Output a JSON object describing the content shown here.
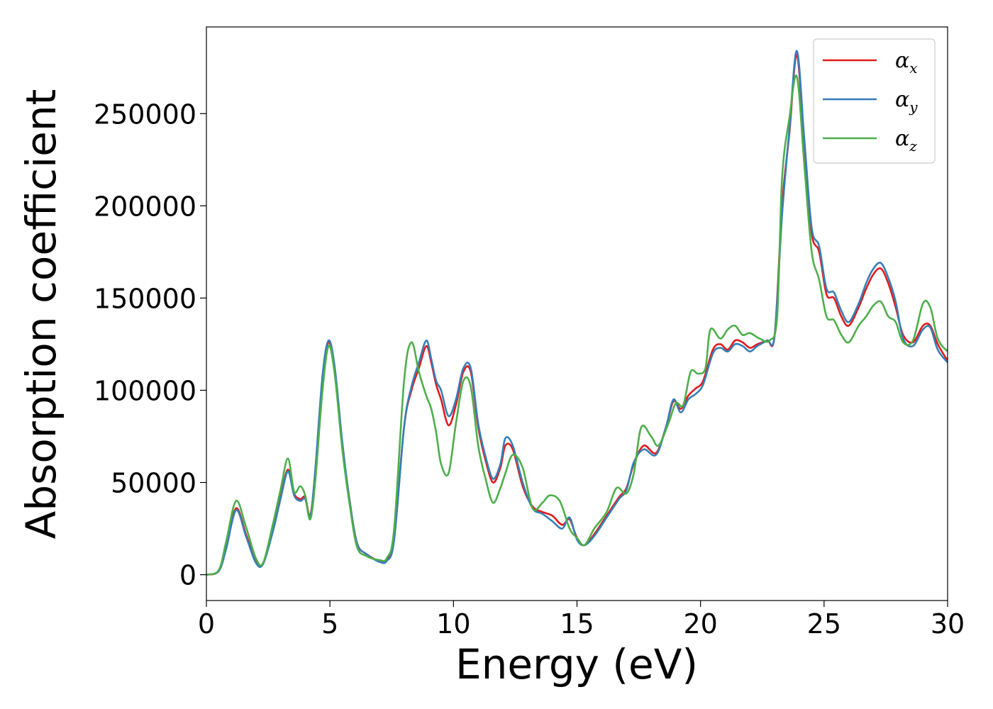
{
  "chart_data": {
    "type": "line",
    "xlabel": "Energy (eV)",
    "ylabel": "Absorption coefficient",
    "xlim": [
      0,
      30
    ],
    "ylim": [
      -14000,
      297000
    ],
    "xticks": [
      0,
      5,
      10,
      15,
      20,
      25,
      30
    ],
    "yticks": [
      0,
      50000,
      100000,
      150000,
      200000,
      250000
    ],
    "grid": false,
    "legend_position": "top-right",
    "series": [
      {
        "name": "α_x",
        "label_base": "α",
        "label_sub": "x",
        "color": "#e41a1c",
        "points": [
          [
            0,
            0
          ],
          [
            0.5,
            2000
          ],
          [
            0.8,
            15000
          ],
          [
            1.2,
            36000
          ],
          [
            1.6,
            22000
          ],
          [
            2.0,
            7000
          ],
          [
            2.3,
            6000
          ],
          [
            2.7,
            25000
          ],
          [
            3.0,
            42000
          ],
          [
            3.3,
            57000
          ],
          [
            3.55,
            44000
          ],
          [
            3.8,
            41000
          ],
          [
            4.0,
            42000
          ],
          [
            4.2,
            32000
          ],
          [
            4.4,
            55000
          ],
          [
            4.7,
            105000
          ],
          [
            4.95,
            126000
          ],
          [
            5.2,
            110000
          ],
          [
            5.5,
            70000
          ],
          [
            5.8,
            40000
          ],
          [
            6.1,
            17000
          ],
          [
            6.5,
            11000
          ],
          [
            7.0,
            7500
          ],
          [
            7.3,
            8000
          ],
          [
            7.6,
            20000
          ],
          [
            8.0,
            80000
          ],
          [
            8.3,
            100000
          ],
          [
            8.6,
            112000
          ],
          [
            8.9,
            124000
          ],
          [
            9.1,
            115000
          ],
          [
            9.3,
            103000
          ],
          [
            9.5,
            95000
          ],
          [
            9.8,
            81000
          ],
          [
            10.1,
            92000
          ],
          [
            10.4,
            110000
          ],
          [
            10.7,
            110000
          ],
          [
            11.0,
            80000
          ],
          [
            11.3,
            62000
          ],
          [
            11.6,
            50000
          ],
          [
            11.9,
            58000
          ],
          [
            12.1,
            70000
          ],
          [
            12.4,
            68000
          ],
          [
            12.8,
            48000
          ],
          [
            13.2,
            37000
          ],
          [
            13.6,
            34000
          ],
          [
            14.0,
            32000
          ],
          [
            14.4,
            27000
          ],
          [
            14.7,
            30000
          ],
          [
            15.0,
            20000
          ],
          [
            15.3,
            16000
          ],
          [
            15.7,
            22000
          ],
          [
            16.2,
            32000
          ],
          [
            16.7,
            42000
          ],
          [
            17.0,
            47000
          ],
          [
            17.3,
            60000
          ],
          [
            17.7,
            70000
          ],
          [
            18.2,
            66000
          ],
          [
            18.6,
            80000
          ],
          [
            18.9,
            94000
          ],
          [
            19.2,
            90000
          ],
          [
            19.5,
            97000
          ],
          [
            19.8,
            101000
          ],
          [
            20.1,
            105000
          ],
          [
            20.5,
            122000
          ],
          [
            20.8,
            125000
          ],
          [
            21.1,
            122000
          ],
          [
            21.4,
            127000
          ],
          [
            21.7,
            126000
          ],
          [
            22.0,
            123000
          ],
          [
            22.3,
            125000
          ],
          [
            22.7,
            127000
          ],
          [
            23.0,
            130000
          ],
          [
            23.3,
            200000
          ],
          [
            23.6,
            240000
          ],
          [
            23.9,
            282000
          ],
          [
            24.2,
            232000
          ],
          [
            24.5,
            185000
          ],
          [
            24.8,
            175000
          ],
          [
            25.1,
            152000
          ],
          [
            25.4,
            150000
          ],
          [
            25.7,
            140000
          ],
          [
            26.0,
            135000
          ],
          [
            26.4,
            145000
          ],
          [
            26.7,
            155000
          ],
          [
            27.0,
            163000
          ],
          [
            27.3,
            166000
          ],
          [
            27.6,
            158000
          ],
          [
            27.9,
            145000
          ],
          [
            28.2,
            130000
          ],
          [
            28.6,
            126000
          ],
          [
            29.0,
            135000
          ],
          [
            29.3,
            135000
          ],
          [
            29.6,
            125000
          ],
          [
            30.0,
            116000
          ]
        ]
      },
      {
        "name": "α_y",
        "label_base": "α",
        "label_sub": "y",
        "color": "#377eb8",
        "points": [
          [
            0,
            0
          ],
          [
            0.5,
            2000
          ],
          [
            0.8,
            14000
          ],
          [
            1.2,
            35000
          ],
          [
            1.6,
            21000
          ],
          [
            2.0,
            6500
          ],
          [
            2.3,
            6000
          ],
          [
            2.7,
            24000
          ],
          [
            3.0,
            41000
          ],
          [
            3.3,
            56000
          ],
          [
            3.55,
            43000
          ],
          [
            3.8,
            40000
          ],
          [
            4.0,
            41000
          ],
          [
            4.2,
            31000
          ],
          [
            4.4,
            56000
          ],
          [
            4.7,
            108000
          ],
          [
            4.95,
            127000
          ],
          [
            5.2,
            112000
          ],
          [
            5.5,
            72000
          ],
          [
            5.8,
            40000
          ],
          [
            6.1,
            17000
          ],
          [
            6.5,
            11000
          ],
          [
            7.0,
            7000
          ],
          [
            7.3,
            7500
          ],
          [
            7.6,
            19000
          ],
          [
            8.0,
            80000
          ],
          [
            8.3,
            102000
          ],
          [
            8.6,
            115000
          ],
          [
            8.9,
            127000
          ],
          [
            9.1,
            117000
          ],
          [
            9.3,
            105000
          ],
          [
            9.5,
            100000
          ],
          [
            9.8,
            86000
          ],
          [
            10.1,
            95000
          ],
          [
            10.4,
            112000
          ],
          [
            10.7,
            112000
          ],
          [
            11.0,
            82000
          ],
          [
            11.3,
            64000
          ],
          [
            11.6,
            52000
          ],
          [
            11.9,
            60000
          ],
          [
            12.1,
            74000
          ],
          [
            12.4,
            70000
          ],
          [
            12.8,
            50000
          ],
          [
            13.2,
            36000
          ],
          [
            13.6,
            33000
          ],
          [
            14.0,
            29000
          ],
          [
            14.4,
            25000
          ],
          [
            14.7,
            31000
          ],
          [
            15.0,
            19000
          ],
          [
            15.3,
            16000
          ],
          [
            15.7,
            21000
          ],
          [
            16.2,
            31000
          ],
          [
            16.7,
            41000
          ],
          [
            17.0,
            46000
          ],
          [
            17.3,
            61000
          ],
          [
            17.7,
            68000
          ],
          [
            18.2,
            65000
          ],
          [
            18.6,
            80000
          ],
          [
            18.9,
            95000
          ],
          [
            19.2,
            88000
          ],
          [
            19.5,
            95000
          ],
          [
            19.8,
            98000
          ],
          [
            20.1,
            103000
          ],
          [
            20.5,
            120000
          ],
          [
            20.8,
            123000
          ],
          [
            21.1,
            121000
          ],
          [
            21.4,
            125000
          ],
          [
            21.7,
            124000
          ],
          [
            22.0,
            121000
          ],
          [
            22.3,
            124000
          ],
          [
            22.7,
            127000
          ],
          [
            23.0,
            130000
          ],
          [
            23.3,
            195000
          ],
          [
            23.6,
            242000
          ],
          [
            23.9,
            284000
          ],
          [
            24.2,
            236000
          ],
          [
            24.5,
            188000
          ],
          [
            24.8,
            178000
          ],
          [
            25.1,
            155000
          ],
          [
            25.4,
            153000
          ],
          [
            25.7,
            143000
          ],
          [
            26.0,
            137000
          ],
          [
            26.4,
            147000
          ],
          [
            26.7,
            158000
          ],
          [
            27.0,
            166000
          ],
          [
            27.3,
            169000
          ],
          [
            27.6,
            161000
          ],
          [
            27.9,
            148000
          ],
          [
            28.2,
            128000
          ],
          [
            28.6,
            124000
          ],
          [
            29.0,
            133000
          ],
          [
            29.3,
            134000
          ],
          [
            29.6,
            122000
          ],
          [
            30.0,
            115000
          ]
        ]
      },
      {
        "name": "α_z",
        "label_base": "α",
        "label_sub": "z",
        "color": "#4daf4a",
        "points": [
          [
            0,
            0
          ],
          [
            0.5,
            2500
          ],
          [
            0.8,
            18000
          ],
          [
            1.2,
            40000
          ],
          [
            1.6,
            26000
          ],
          [
            2.0,
            9000
          ],
          [
            2.3,
            6500
          ],
          [
            2.7,
            28000
          ],
          [
            3.0,
            46000
          ],
          [
            3.3,
            63000
          ],
          [
            3.55,
            45000
          ],
          [
            3.8,
            48000
          ],
          [
            4.0,
            43000
          ],
          [
            4.2,
            30000
          ],
          [
            4.4,
            50000
          ],
          [
            4.7,
            100000
          ],
          [
            4.95,
            124000
          ],
          [
            5.2,
            108000
          ],
          [
            5.5,
            68000
          ],
          [
            5.8,
            38000
          ],
          [
            6.1,
            15000
          ],
          [
            6.5,
            10000
          ],
          [
            7.0,
            8000
          ],
          [
            7.3,
            9000
          ],
          [
            7.6,
            25000
          ],
          [
            8.0,
            105000
          ],
          [
            8.3,
            126000
          ],
          [
            8.6,
            110000
          ],
          [
            8.9,
            97000
          ],
          [
            9.1,
            90000
          ],
          [
            9.3,
            77000
          ],
          [
            9.5,
            60000
          ],
          [
            9.8,
            55000
          ],
          [
            10.1,
            82000
          ],
          [
            10.4,
            105000
          ],
          [
            10.7,
            102000
          ],
          [
            11.0,
            70000
          ],
          [
            11.3,
            52000
          ],
          [
            11.6,
            39000
          ],
          [
            11.9,
            47000
          ],
          [
            12.1,
            55000
          ],
          [
            12.4,
            65000
          ],
          [
            12.8,
            58000
          ],
          [
            13.2,
            36000
          ],
          [
            13.6,
            39000
          ],
          [
            13.9,
            43000
          ],
          [
            14.3,
            40000
          ],
          [
            14.7,
            25000
          ],
          [
            15.0,
            20000
          ],
          [
            15.3,
            16000
          ],
          [
            15.7,
            25000
          ],
          [
            16.2,
            34000
          ],
          [
            16.6,
            47000
          ],
          [
            17.0,
            44000
          ],
          [
            17.3,
            55000
          ],
          [
            17.6,
            80000
          ],
          [
            18.0,
            75000
          ],
          [
            18.3,
            70000
          ],
          [
            18.7,
            82000
          ],
          [
            19.0,
            93000
          ],
          [
            19.3,
            92000
          ],
          [
            19.6,
            110000
          ],
          [
            19.9,
            109000
          ],
          [
            20.2,
            112000
          ],
          [
            20.4,
            133000
          ],
          [
            20.8,
            128000
          ],
          [
            21.1,
            133000
          ],
          [
            21.4,
            135000
          ],
          [
            21.7,
            130000
          ],
          [
            22.0,
            131000
          ],
          [
            22.4,
            128000
          ],
          [
            22.8,
            127000
          ],
          [
            23.1,
            140000
          ],
          [
            23.3,
            215000
          ],
          [
            23.6,
            248000
          ],
          [
            23.9,
            270000
          ],
          [
            24.2,
            222000
          ],
          [
            24.5,
            175000
          ],
          [
            24.8,
            160000
          ],
          [
            25.1,
            140000
          ],
          [
            25.4,
            138000
          ],
          [
            25.7,
            130000
          ],
          [
            26.0,
            126000
          ],
          [
            26.4,
            135000
          ],
          [
            26.7,
            140000
          ],
          [
            27.0,
            146000
          ],
          [
            27.3,
            148000
          ],
          [
            27.6,
            140000
          ],
          [
            27.9,
            137000
          ],
          [
            28.2,
            126000
          ],
          [
            28.6,
            127000
          ],
          [
            29.0,
            147000
          ],
          [
            29.3,
            145000
          ],
          [
            29.6,
            128000
          ],
          [
            30.0,
            121000
          ]
        ]
      }
    ]
  }
}
